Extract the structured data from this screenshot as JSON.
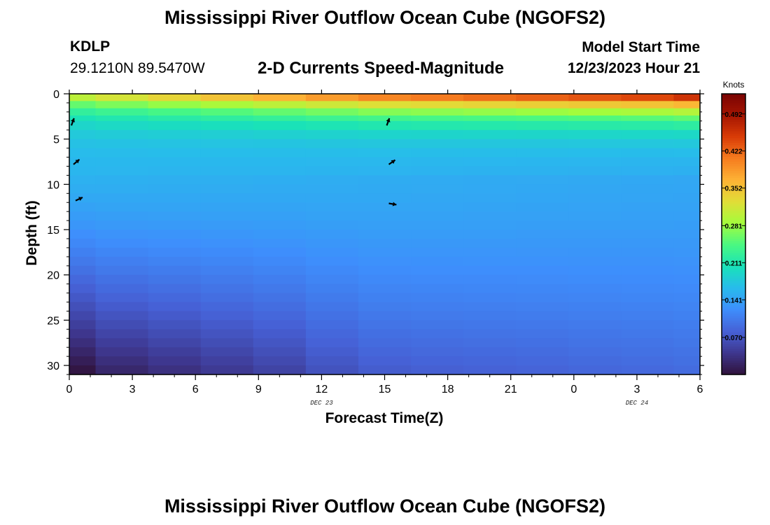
{
  "header": {
    "title": "Mississippi River Outflow Ocean Cube (NGOFS2)",
    "station_id": "KDLP",
    "station_coords": "29.1210N  89.5470W",
    "subtitle": "2-D Currents Speed-Magnitude",
    "model_start_label": "Model Start Time",
    "model_start_value": "12/23/2023 Hour 21"
  },
  "footer": {
    "title": "Mississippi River Outflow Ocean Cube (NGOFS2)"
  },
  "chart_data": {
    "type": "heatmap",
    "title": "2-D Currents Speed-Magnitude",
    "xlabel": "Forecast Time(Z)",
    "ylabel": "Depth (ft)",
    "x_tick_labels": [
      "0",
      "3",
      "6",
      "9",
      "12",
      "15",
      "18",
      "21",
      "0",
      "3",
      "6"
    ],
    "x_hours": [
      0,
      3,
      6,
      9,
      12,
      15,
      18,
      21,
      24,
      27,
      30
    ],
    "date_labels": [
      {
        "label": "DEC 23",
        "hour": 12
      },
      {
        "label": "DEC 24",
        "hour": 27
      }
    ],
    "xlim": [
      0,
      30
    ],
    "y_ticks": [
      0,
      5,
      10,
      15,
      20,
      25,
      30
    ],
    "ylim": [
      0,
      31
    ],
    "y_inverted": true,
    "colorbar": {
      "label": "Knots",
      "ticks": [
        "0.492",
        "0.422",
        "0.352",
        "0.281",
        "0.211",
        "0.141",
        "0.070"
      ],
      "range": [
        0.0,
        0.53
      ],
      "colormap": [
        "#30123b",
        "#3e378f",
        "#4661d6",
        "#3e8efc",
        "#28bbec",
        "#19e2b9",
        "#4af882",
        "#a4fc3c",
        "#e1dd37",
        "#fdb235",
        "#f67c1f",
        "#d93c07",
        "#a51502",
        "#7a0403"
      ]
    },
    "time_columns": [
      {
        "start": 0,
        "end": 1.25
      },
      {
        "start": 1.25,
        "end": 3.75
      },
      {
        "start": 3.75,
        "end": 6.25
      },
      {
        "start": 6.25,
        "end": 8.75
      },
      {
        "start": 8.75,
        "end": 11.25
      },
      {
        "start": 11.25,
        "end": 13.75
      },
      {
        "start": 13.75,
        "end": 16.25
      },
      {
        "start": 16.25,
        "end": 18.75
      },
      {
        "start": 18.75,
        "end": 21.25
      },
      {
        "start": 21.25,
        "end": 23.75
      },
      {
        "start": 23.75,
        "end": 26.25
      },
      {
        "start": 26.25,
        "end": 28.75
      },
      {
        "start": 28.75,
        "end": 30
      }
    ],
    "surface_speed": [
      0.33,
      0.35,
      0.37,
      0.39,
      0.41,
      0.43,
      0.45,
      0.46,
      0.47,
      0.48,
      0.49,
      0.5,
      0.52
    ],
    "bottom_speed": [
      0.0,
      0.02,
      0.03,
      0.04,
      0.05,
      0.065,
      0.075,
      0.078,
      0.08,
      0.082,
      0.085,
      0.087,
      0.09
    ],
    "vectors": [
      {
        "hour": 0.1,
        "depth": 3.5,
        "angle": 70
      },
      {
        "hour": 0.2,
        "depth": 7.8,
        "angle": 40
      },
      {
        "hour": 0.3,
        "depth": 11.8,
        "angle": 25
      },
      {
        "hour": 15.1,
        "depth": 3.5,
        "angle": 70
      },
      {
        "hour": 15.2,
        "depth": 7.8,
        "angle": 35
      },
      {
        "hour": 15.2,
        "depth": 12.1,
        "angle": -10
      }
    ]
  }
}
